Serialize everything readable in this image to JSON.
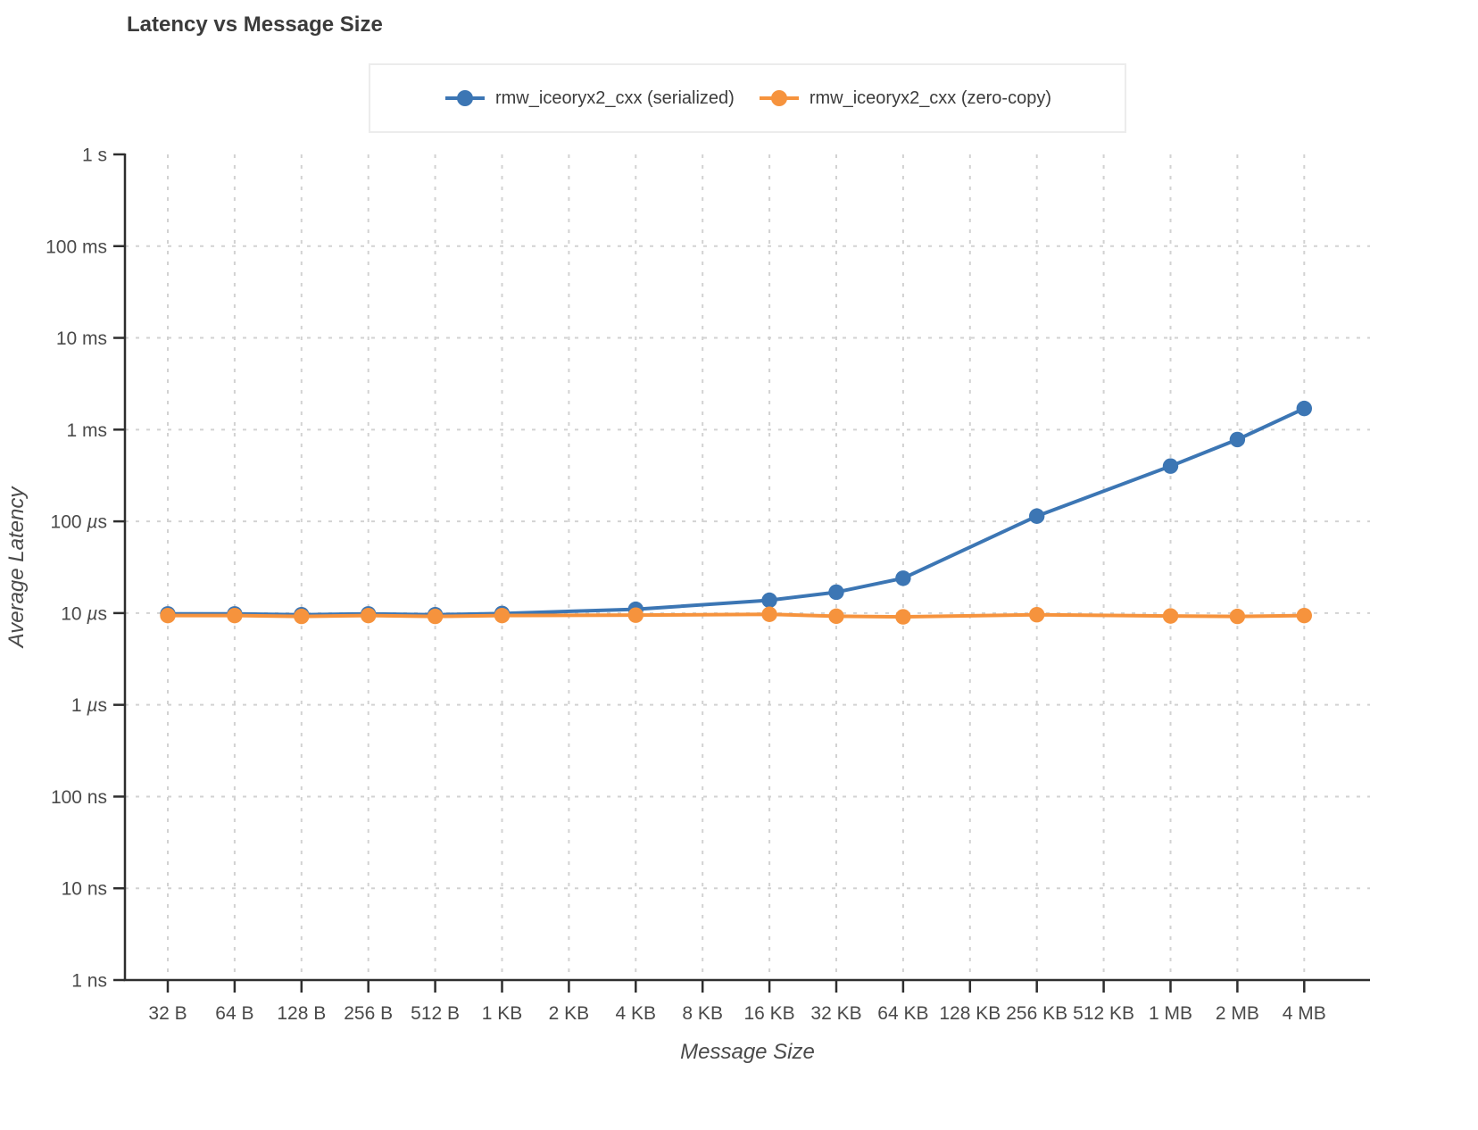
{
  "title": "Latency vs Message Size",
  "legend": {
    "items": [
      {
        "label": "rmw_iceoryx2_cxx (serialized)",
        "color": "#3c76b4"
      },
      {
        "label": "rmw_iceoryx2_cxx (zero-copy)",
        "color": "#f6933d"
      }
    ]
  },
  "chart_data": {
    "type": "line",
    "title": "Latency vs Message Size",
    "xlabel": "Message Size",
    "ylabel": "Average Latency",
    "x_scale": "log2",
    "y_scale": "log10",
    "grid": "dashed",
    "legend_position": "top-center",
    "x_tick_labels": [
      "32 B",
      "64 B",
      "128 B",
      "256 B",
      "512 B",
      "1 KB",
      "2 KB",
      "4 KB",
      "8 KB",
      "16 KB",
      "32 KB",
      "64 KB",
      "128 KB",
      "256 KB",
      "512 KB",
      "1 MB",
      "2 MB",
      "4 MB"
    ],
    "y_tick_labels": [
      "1 ns",
      "10 ns",
      "100 ns",
      "1 µs",
      "10 µs",
      "100 µs",
      "1 ms",
      "10 ms",
      "100 ms",
      "1 s"
    ],
    "y_tick_values_ns": [
      1,
      10,
      100,
      1000,
      10000,
      100000,
      1000000,
      10000000,
      100000000,
      1000000000
    ],
    "ylim_ns": [
      1,
      1000000000
    ],
    "categories": [
      "32 B",
      "64 B",
      "128 B",
      "256 B",
      "512 B",
      "1 KB",
      "4 KB",
      "16 KB",
      "32 KB",
      "64 KB",
      "256 KB",
      "1 MB",
      "2 MB",
      "4 MB"
    ],
    "series": [
      {
        "name": "rmw_iceoryx2_cxx (serialized)",
        "color": "#3c76b4",
        "values_us": [
          9.8,
          9.8,
          9.6,
          9.8,
          9.6,
          9.9,
          11.0,
          13.8,
          16.9,
          24,
          114,
          400,
          780,
          1700
        ]
      },
      {
        "name": "rmw_iceoryx2_cxx (zero-copy)",
        "color": "#f6933d",
        "values_us": [
          9.4,
          9.4,
          9.2,
          9.4,
          9.2,
          9.4,
          9.5,
          9.7,
          9.25,
          9.1,
          9.6,
          9.3,
          9.2,
          9.4
        ]
      }
    ]
  }
}
